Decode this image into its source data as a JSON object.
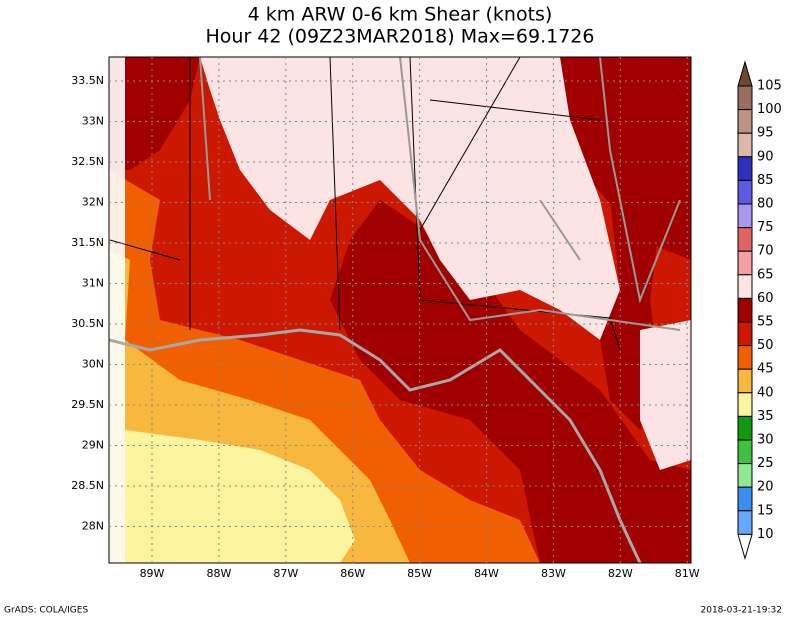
{
  "title": {
    "line1": "4 km ARW 0-6 km Shear (knots)",
    "line2": "Hour 42 (09Z23MAR2018) Max=69.1726"
  },
  "lat_labels": [
    "33.5N",
    "33N",
    "32.5N",
    "32N",
    "31.5N",
    "31N",
    "30.5N",
    "30N",
    "29.5N",
    "29N",
    "28.5N",
    "28N"
  ],
  "lon_labels": [
    "89W",
    "88W",
    "87W",
    "86W",
    "85W",
    "84W",
    "83W",
    "82W",
    "81W"
  ],
  "colorbar": {
    "levels": [
      105,
      100,
      95,
      90,
      85,
      80,
      75,
      70,
      65,
      60,
      55,
      50,
      45,
      40,
      35,
      30,
      25,
      20,
      15,
      10
    ],
    "colors": [
      "#6e4634",
      "#9a6e5e",
      "#bc9484",
      "#dcb8a8",
      "#3030c0",
      "#5c5cdc",
      "#a898f0",
      "#e06464",
      "#f4a0a0",
      "#fde4e4",
      "#a00000",
      "#cc1800",
      "#f06000",
      "#f8b840",
      "#fdf4a0",
      "#109a10",
      "#40c040",
      "#90e890",
      "#3a8ef0",
      "#68a8f8",
      "#ffffff"
    ]
  },
  "footer": {
    "left": "GrADS: COLA/IGES",
    "right": "2018-03-21-19:32"
  }
}
